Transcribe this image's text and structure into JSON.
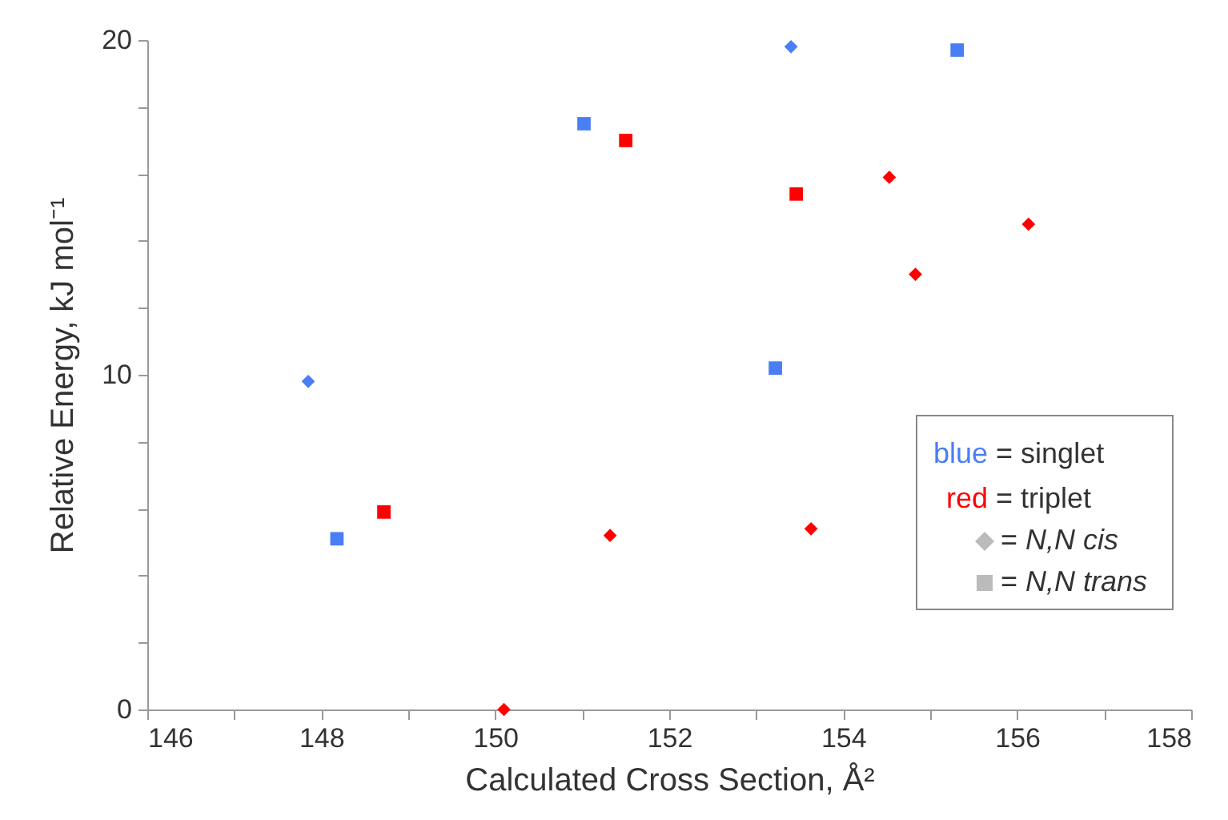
{
  "chart_data": {
    "type": "scatter",
    "xlabel": "Calculated Cross Section,  Å²",
    "ylabel": "Relative Energy, kJ mol⁻¹",
    "xlim": [
      146,
      158
    ],
    "xticks": [
      146,
      {
        "value": 147,
        "label": null
      },
      148,
      {
        "value": 149,
        "label": null
      },
      150,
      {
        "value": 151,
        "label": null
      },
      152,
      {
        "value": 153,
        "label": null
      },
      154,
      {
        "value": 155,
        "label": null
      },
      156,
      {
        "value": 157,
        "label": null
      },
      158
    ],
    "ylim": [
      0,
      20
    ],
    "yticks": [
      0,
      {
        "value": 2,
        "label": null
      },
      {
        "value": 4,
        "label": null
      },
      {
        "value": 6,
        "label": null
      },
      {
        "value": 8,
        "label": null
      },
      10,
      {
        "value": 12,
        "label": null
      },
      {
        "value": 14,
        "label": null
      },
      {
        "value": 16,
        "label": null
      },
      {
        "value": 18,
        "label": null
      },
      20
    ],
    "grid": false,
    "series": [
      {
        "color": "#4a7ef5",
        "marker": "diamond",
        "x": [
          147.85,
          153.4
        ],
        "values": [
          9.8,
          19.8
        ]
      },
      {
        "color": "#4a7ef5",
        "marker": "square",
        "x": [
          148.18,
          151.02,
          153.22,
          155.31
        ],
        "values": [
          5.1,
          17.5,
          10.2,
          19.7
        ]
      },
      {
        "color": "#ff0000",
        "marker": "diamond",
        "x": [
          150.1,
          151.32,
          153.63,
          154.53,
          154.83,
          156.13
        ],
        "values": [
          0,
          5.2,
          5.4,
          15.9,
          13.0,
          14.5
        ]
      },
      {
        "color": "#ff0000",
        "marker": "square",
        "x": [
          148.72,
          151.5,
          153.46
        ],
        "values": [
          5.9,
          17.0,
          15.4
        ]
      }
    ],
    "annotations": [
      "blue = singlet",
      "red = triplet",
      "= N,N cis",
      "= N,N trans"
    ]
  }
}
